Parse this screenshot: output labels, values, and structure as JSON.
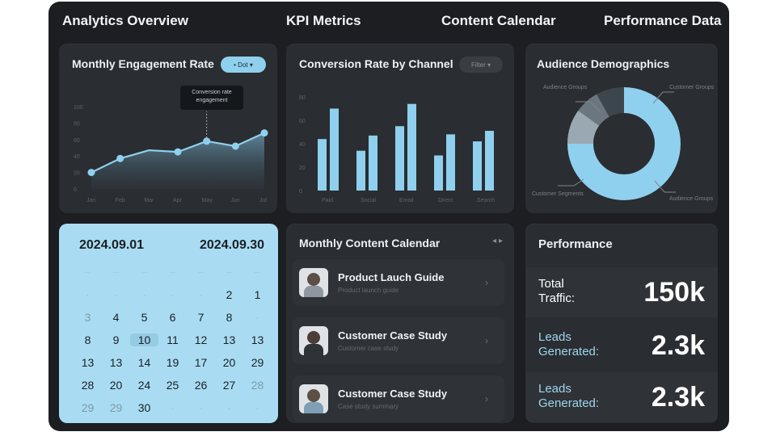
{
  "nav": {
    "analytics": "Analytics Overview",
    "kpi": "KPI Metrics",
    "calendar": "Content Calendar",
    "performance": "Performance Data"
  },
  "engagement": {
    "title": "Monthly Engagement Rate",
    "filter_label": "• Dot ▾",
    "tooltip_line1": "Conversion rate",
    "tooltip_line2": "engagement"
  },
  "conversion": {
    "title": "Conversion Rate by Channel",
    "filter_label": "Filter ▾"
  },
  "demographics": {
    "title": "Audience Demographics",
    "labels": [
      "Audience Groups",
      "Customer Groups",
      "Customer Segments",
      "Audience Groups"
    ]
  },
  "calendar": {
    "start": "2024.09.01",
    "end": "2024.09.30",
    "rows": [
      [
        "",
        "",
        "",
        "",
        "",
        "2",
        "1"
      ],
      [
        "3",
        "4",
        "5",
        "6",
        "7",
        "8",
        ""
      ],
      [
        "8",
        "9",
        "10",
        "11",
        "12",
        "13",
        "13"
      ],
      [
        "13",
        "13",
        "14",
        "19",
        "17",
        "20",
        "29"
      ],
      [
        "28",
        "20",
        "24",
        "25",
        "26",
        "27",
        "28"
      ],
      [
        "29",
        "29",
        "30",
        "",
        "",
        "",
        ""
      ]
    ]
  },
  "content_calendar": {
    "title": "Monthly Content Calendar",
    "header_icon": "arrows-icon",
    "items": [
      {
        "title": "Product Lauch Guide",
        "sub": "Product launch guide",
        "avatar": "person-headset-icon"
      },
      {
        "title": "Customer Case Study",
        "sub": "Customer case study",
        "avatar": "person-suit-icon"
      },
      {
        "title": "Customer Case Study",
        "sub": "Case study summary",
        "avatar": "person-headset-icon"
      }
    ]
  },
  "performance": {
    "title": "Performance",
    "rows": [
      {
        "label": "Total Traffic:",
        "value": "150k",
        "color": "#ffffff"
      },
      {
        "label": "Leads Generated:",
        "value": "2.3k",
        "color": "#9fd6f0"
      },
      {
        "label": "Leads Generated:",
        "value": "2.3k",
        "color": "#9fd6f0"
      }
    ]
  },
  "chart_data": [
    {
      "type": "area",
      "title": "Monthly Engagement Rate",
      "ylim": [
        0,
        100
      ],
      "yticks": [
        "100",
        "80",
        "60",
        "40",
        "20",
        "0"
      ],
      "x": [
        "Jan",
        "Feb",
        "Mar",
        "Apr",
        "May",
        "Jun",
        "Jul"
      ],
      "values": [
        20,
        37,
        47,
        45,
        58,
        52,
        68
      ],
      "highlight_index": 5,
      "grid": false,
      "accent": "#8fd0ee"
    },
    {
      "type": "bar",
      "title": "Conversion Rate by Channel",
      "ylim": [
        0,
        80
      ],
      "yticks": [
        "80",
        "60",
        "40",
        "20",
        "0"
      ],
      "categories": [
        "Paid",
        "Social",
        "Email",
        "Direct",
        "Search"
      ],
      "series": [
        {
          "values": [
            44,
            34,
            55,
            30,
            42
          ]
        },
        {
          "values": [
            70,
            47,
            74,
            48,
            51
          ]
        }
      ],
      "accent": "#8fd0ee"
    },
    {
      "type": "pie",
      "title": "Audience Demographics",
      "donut": true,
      "slices": [
        {
          "value": 75,
          "color": "#8fd0ee"
        },
        {
          "value": 10,
          "color": "#9aa8b1"
        },
        {
          "value": 7,
          "color": "#6b767e"
        },
        {
          "value": 8,
          "color": "#3e464d"
        }
      ]
    }
  ]
}
